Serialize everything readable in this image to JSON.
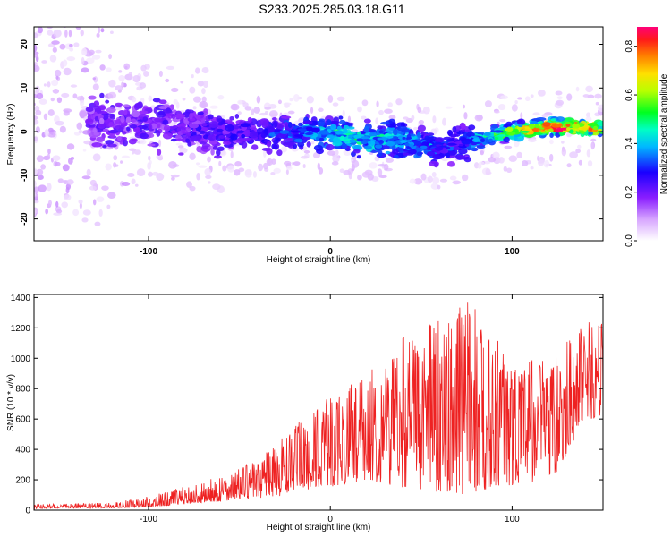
{
  "title": "S233.2025.285.03.18.G11",
  "chart_data": [
    {
      "type": "heatmap",
      "title": "S233.2025.285.03.18.G11",
      "xlabel": "Height of straight line (km)",
      "ylabel": "Frequency (Hz)",
      "xlim": [
        -163,
        150
      ],
      "ylim": [
        -25,
        24
      ],
      "xticks": [
        -100,
        0,
        100
      ],
      "yticks": [
        -20,
        -10,
        0,
        10,
        20
      ],
      "colorbar": {
        "label": "Normalized spectral amplitude",
        "range": [
          0,
          0.88
        ],
        "ticks": [
          0,
          0.2,
          0.4,
          0.6,
          0.8
        ]
      },
      "ridge_center_hz": [
        {
          "x": -160,
          "f": 5
        },
        {
          "x": -120,
          "f": 2
        },
        {
          "x": -80,
          "f": 1
        },
        {
          "x": -40,
          "f": -1
        },
        {
          "x": -10,
          "f": 0
        },
        {
          "x": 20,
          "f": -2
        },
        {
          "x": 40,
          "f": -2
        },
        {
          "x": 60,
          "f": -4
        },
        {
          "x": 80,
          "f": -2
        },
        {
          "x": 100,
          "f": 0
        },
        {
          "x": 120,
          "f": 1
        },
        {
          "x": 150,
          "f": 1
        }
      ],
      "peak_amplitude_by_height": [
        {
          "x": -160,
          "a": 0.05
        },
        {
          "x": -120,
          "a": 0.12
        },
        {
          "x": -80,
          "a": 0.15
        },
        {
          "x": -40,
          "a": 0.2
        },
        {
          "x": -10,
          "a": 0.38
        },
        {
          "x": 10,
          "a": 0.45
        },
        {
          "x": 40,
          "a": 0.4
        },
        {
          "x": 70,
          "a": 0.25
        },
        {
          "x": 90,
          "a": 0.5
        },
        {
          "x": 110,
          "a": 0.75
        },
        {
          "x": 130,
          "a": 0.88
        },
        {
          "x": 150,
          "a": 0.7
        }
      ]
    },
    {
      "type": "line",
      "xlabel": "Height of straight line (km)",
      "ylabel": "SNR (10 * v/v)",
      "xlim": [
        -163,
        150
      ],
      "ylim": [
        0,
        1420
      ],
      "xticks": [
        -100,
        0,
        100
      ],
      "yticks": [
        0,
        200,
        400,
        600,
        800,
        1000,
        1200,
        1400
      ],
      "series_color": "#ee2222",
      "envelope": [
        {
          "x": -163,
          "min": 10,
          "max": 40
        },
        {
          "x": -120,
          "min": 15,
          "max": 50
        },
        {
          "x": -100,
          "min": 20,
          "max": 90
        },
        {
          "x": -80,
          "min": 40,
          "max": 160
        },
        {
          "x": -60,
          "min": 60,
          "max": 230
        },
        {
          "x": -40,
          "min": 80,
          "max": 330
        },
        {
          "x": -20,
          "min": 100,
          "max": 550
        },
        {
          "x": 0,
          "min": 150,
          "max": 750
        },
        {
          "x": 20,
          "min": 200,
          "max": 900
        },
        {
          "x": 40,
          "min": 150,
          "max": 1150
        },
        {
          "x": 60,
          "min": 120,
          "max": 1250
        },
        {
          "x": 75,
          "min": 100,
          "max": 1420
        },
        {
          "x": 90,
          "min": 150,
          "max": 1150
        },
        {
          "x": 110,
          "min": 180,
          "max": 1000
        },
        {
          "x": 125,
          "min": 250,
          "max": 1100
        },
        {
          "x": 140,
          "min": 600,
          "max": 1250
        },
        {
          "x": 150,
          "min": 600,
          "max": 1250
        }
      ]
    }
  ]
}
